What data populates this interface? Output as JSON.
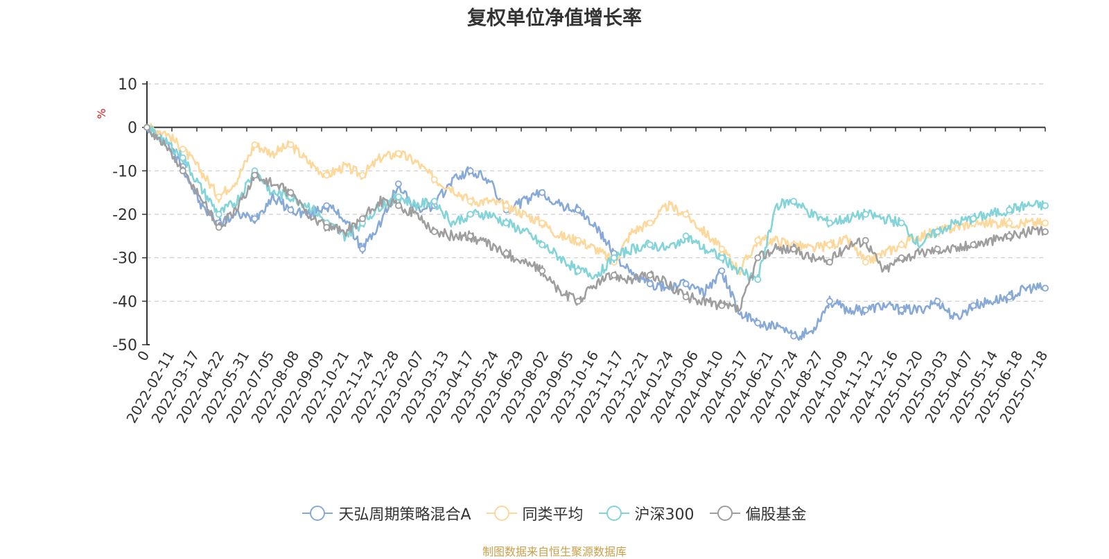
{
  "chart_data": {
    "type": "line",
    "title": "复权单位净值增长率",
    "ylabel": "%",
    "xlabel": "",
    "ylim": [
      -50,
      10
    ],
    "yticks": [
      10,
      0,
      -10,
      -20,
      -30,
      -40,
      -50
    ],
    "grid": true,
    "legend_position": "bottom",
    "x_ticks": [
      "0",
      "2022-02-11",
      "2022-03-17",
      "2022-04-22",
      "2022-05-31",
      "2022-07-05",
      "2022-08-08",
      "2022-09-09",
      "2022-10-21",
      "2022-11-24",
      "2022-12-28",
      "2023-02-07",
      "2023-03-13",
      "2023-04-17",
      "2023-05-24",
      "2023-06-29",
      "2023-08-02",
      "2023-09-05",
      "2023-10-16",
      "2023-11-17",
      "2023-12-21",
      "2024-01-24",
      "2024-03-06",
      "2024-04-10",
      "2024-05-17",
      "2024-06-21",
      "2024-07-24",
      "2024-08-27",
      "2024-10-09",
      "2024-11-12",
      "2024-12-16",
      "2025-01-20",
      "2025-03-03",
      "2025-04-07",
      "2025-05-14",
      "2025-06-18",
      "2025-07-18"
    ],
    "series": [
      {
        "name": "天弘周期策略混合A",
        "color": "#87a9d8",
        "values": [
          0,
          -3,
          -9,
          -18,
          -22,
          -20,
          -21,
          -16,
          -19,
          -20,
          -18,
          -21,
          -28,
          -22,
          -13,
          -19,
          -18,
          -12,
          -10,
          -12,
          -19,
          -17,
          -15,
          -18,
          -19,
          -23,
          -29,
          -34,
          -36,
          -37,
          -36,
          -38,
          -33,
          -43,
          -45,
          -46,
          -48,
          -47,
          -40,
          -42,
          -42,
          -41,
          -42,
          -42,
          -40,
          -44,
          -41,
          -40,
          -39,
          -37,
          -37
        ]
      },
      {
        "name": "同类平均",
        "color": "#fdd89a",
        "values": [
          0,
          -1,
          -5,
          -10,
          -16,
          -12,
          -4,
          -6,
          -4,
          -8,
          -11,
          -9,
          -11,
          -7,
          -6,
          -8,
          -12,
          -14,
          -17,
          -17,
          -18,
          -20,
          -22,
          -25,
          -26,
          -28,
          -31,
          -24,
          -22,
          -18,
          -20,
          -24,
          -28,
          -33,
          -26,
          -26,
          -27,
          -28,
          -27,
          -26,
          -31,
          -29,
          -27,
          -25,
          -24,
          -23,
          -22,
          -22,
          -22,
          -22,
          -22
        ]
      },
      {
        "name": "沪深300",
        "color": "#82d4d8",
        "values": [
          0,
          -3,
          -7,
          -14,
          -20,
          -17,
          -10,
          -15,
          -16,
          -18,
          -22,
          -25,
          -22,
          -18,
          -16,
          -18,
          -17,
          -22,
          -20,
          -20,
          -22,
          -24,
          -27,
          -30,
          -33,
          -34,
          -30,
          -28,
          -27,
          -28,
          -25,
          -28,
          -30,
          -33,
          -35,
          -18,
          -17,
          -20,
          -22,
          -21,
          -20,
          -21,
          -22,
          -27,
          -24,
          -22,
          -21,
          -20,
          -19,
          -18,
          -18
        ]
      },
      {
        "name": "偏股基金",
        "color": "#9e9e9e",
        "values": [
          0,
          -4,
          -10,
          -16,
          -23,
          -19,
          -11,
          -13,
          -15,
          -20,
          -23,
          -24,
          -21,
          -17,
          -18,
          -20,
          -24,
          -25,
          -25,
          -27,
          -29,
          -31,
          -33,
          -38,
          -40,
          -36,
          -34,
          -35,
          -34,
          -36,
          -39,
          -40,
          -41,
          -42,
          -30,
          -28,
          -28,
          -30,
          -31,
          -27,
          -26,
          -33,
          -30,
          -29,
          -28,
          -28,
          -27,
          -26,
          -25,
          -24,
          -24
        ]
      }
    ]
  },
  "legend": {
    "items": [
      {
        "label": "天弘周期策略混合A",
        "color": "#87a9d8"
      },
      {
        "label": "同类平均",
        "color": "#fdd89a"
      },
      {
        "label": "沪深300",
        "color": "#82d4d8"
      },
      {
        "label": "偏股基金",
        "color": "#9e9e9e"
      }
    ]
  },
  "source_note": "制图数据来自恒生聚源数据库",
  "colors": {
    "axis": "#333333",
    "grid": "#cccccc",
    "ylabel": "#e01818",
    "source": "#c8a04a"
  }
}
